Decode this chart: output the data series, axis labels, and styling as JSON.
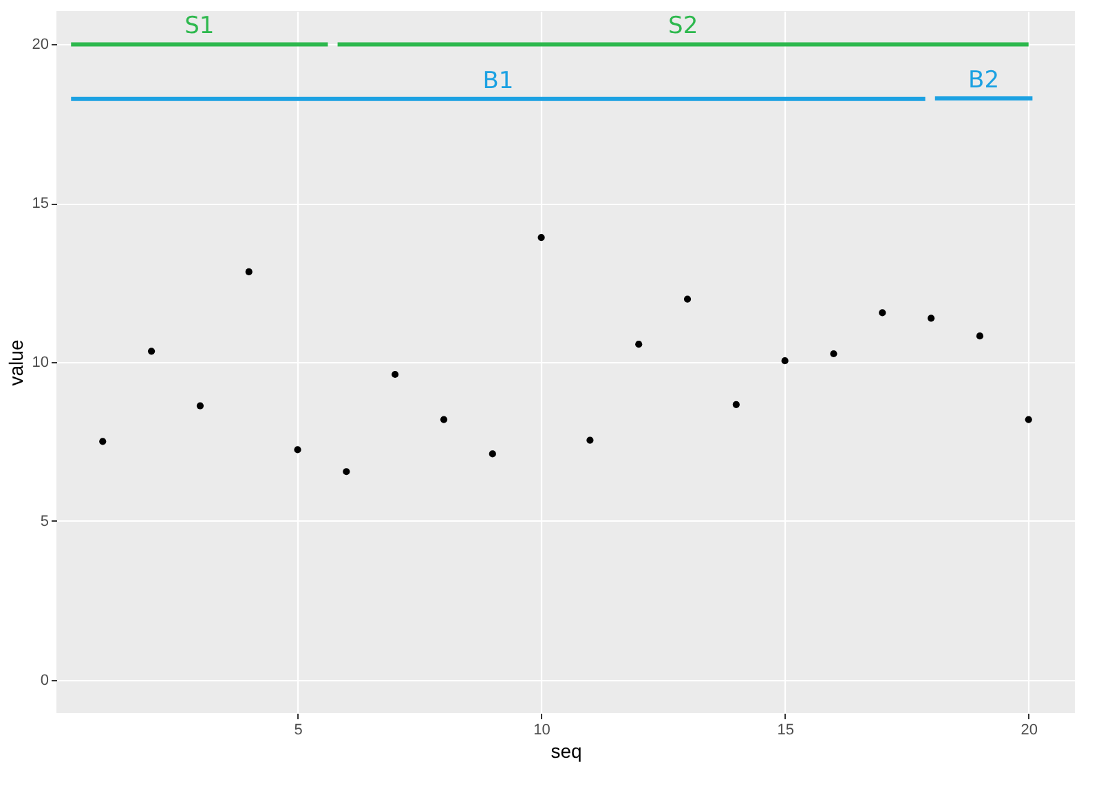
{
  "chart_data": {
    "type": "scatter",
    "xlabel": "seq",
    "ylabel": "value",
    "x": [
      1,
      2,
      3,
      4,
      5,
      6,
      7,
      8,
      9,
      10,
      11,
      12,
      13,
      14,
      15,
      16,
      17,
      18,
      19,
      20
    ],
    "series": [
      {
        "color": "#000000",
        "marker": "circle",
        "values": [
          7.5,
          10.34,
          8.62,
          12.84,
          7.24,
          6.55,
          9.61,
          8.19,
          7.11,
          13.92,
          7.54,
          10.56,
          11.98,
          8.66,
          10.04,
          10.26,
          11.55,
          11.38,
          10.82,
          8.19
        ]
      },
      {
        "name": "S1",
        "type": "line",
        "color": "#2db84d",
        "x": [
          0.35,
          5.62
        ],
        "values": [
          20,
          20
        ]
      },
      {
        "name": "S2",
        "type": "line",
        "color": "#2db84d",
        "x": [
          5.82,
          20
        ],
        "values": [
          20,
          20
        ]
      },
      {
        "name": "B1",
        "type": "line",
        "color": "#1ba1e2",
        "x": [
          0.35,
          17.88
        ],
        "values": [
          18.28,
          18.28
        ]
      },
      {
        "name": "B2",
        "type": "line",
        "color": "#1ba1e2",
        "x": [
          18.08,
          20.08
        ],
        "values": [
          18.3,
          18.3
        ]
      }
    ],
    "grid": true,
    "xlim": [
      0.05,
      20.95
    ],
    "xticks": [
      5,
      10,
      15,
      20
    ],
    "ylim": [
      -1.05,
      21.05
    ],
    "yticks": [
      0,
      5,
      10,
      15,
      20
    ]
  }
}
